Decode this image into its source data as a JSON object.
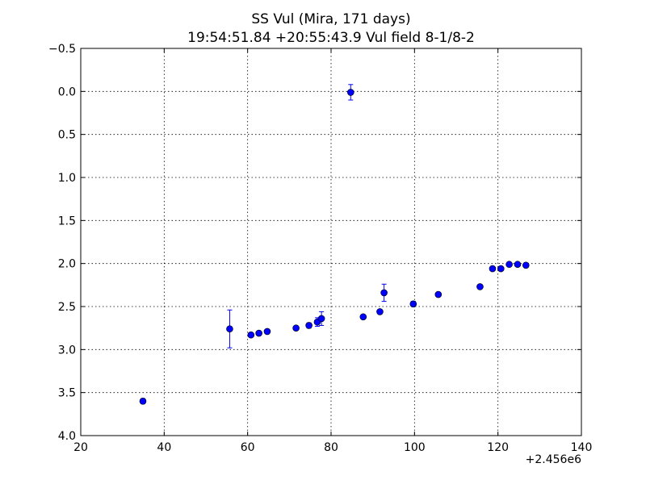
{
  "chart_data": {
    "type": "scatter",
    "title": [
      "SS Vul (Mira, 171 days)",
      "19:54:51.84 +20:55:43.9 Vul field 8-1/8-2"
    ],
    "xlabel": "",
    "ylabel": "",
    "x_offset_label": "+2.456e6",
    "xlim": [
      20,
      140
    ],
    "ylim": [
      4.0,
      -0.5
    ],
    "y_inverted": true,
    "x_ticks": [
      20,
      40,
      60,
      80,
      100,
      120,
      140
    ],
    "x_tick_labels": [
      "20",
      "40",
      "60",
      "80",
      "100",
      "120",
      "140"
    ],
    "y_ticks": [
      -0.5,
      0.0,
      0.5,
      1.0,
      1.5,
      2.0,
      2.5,
      3.0,
      3.5,
      4.0
    ],
    "y_tick_labels": [
      "−0.5",
      "0.0",
      "0.5",
      "1.0",
      "1.5",
      "2.0",
      "2.5",
      "3.0",
      "3.5",
      "4.0"
    ],
    "grid": true,
    "marker_color": "#0000ff",
    "series": [
      {
        "points": [
          {
            "x": 34.9,
            "y": 3.6,
            "err": 0.03
          },
          {
            "x": 55.7,
            "y": 2.76,
            "err": 0.22
          },
          {
            "x": 60.8,
            "y": 2.83,
            "err": 0.02
          },
          {
            "x": 62.7,
            "y": 2.81,
            "err": 0.02
          },
          {
            "x": 64.7,
            "y": 2.79,
            "err": 0.02
          },
          {
            "x": 71.6,
            "y": 2.75,
            "err": 0.02
          },
          {
            "x": 74.7,
            "y": 2.72,
            "err": 0.03
          },
          {
            "x": 76.7,
            "y": 2.68,
            "err": 0.05
          },
          {
            "x": 77.7,
            "y": 2.64,
            "err": 0.08
          },
          {
            "x": 84.7,
            "y": 0.01,
            "err": 0.09
          },
          {
            "x": 87.7,
            "y": 2.62,
            "err": 0.02
          },
          {
            "x": 91.7,
            "y": 2.56,
            "err": 0.02
          },
          {
            "x": 92.7,
            "y": 2.34,
            "err": 0.1
          },
          {
            "x": 99.7,
            "y": 2.47,
            "err": 0.03
          },
          {
            "x": 105.7,
            "y": 2.36,
            "err": 0.02
          },
          {
            "x": 115.7,
            "y": 2.27,
            "err": 0.02
          },
          {
            "x": 118.7,
            "y": 2.06,
            "err": 0.02
          },
          {
            "x": 120.7,
            "y": 2.06,
            "err": 0.02
          },
          {
            "x": 122.7,
            "y": 2.01,
            "err": 0.02
          },
          {
            "x": 124.7,
            "y": 2.01,
            "err": 0.02
          },
          {
            "x": 126.7,
            "y": 2.02,
            "err": 0.02
          }
        ]
      }
    ]
  }
}
